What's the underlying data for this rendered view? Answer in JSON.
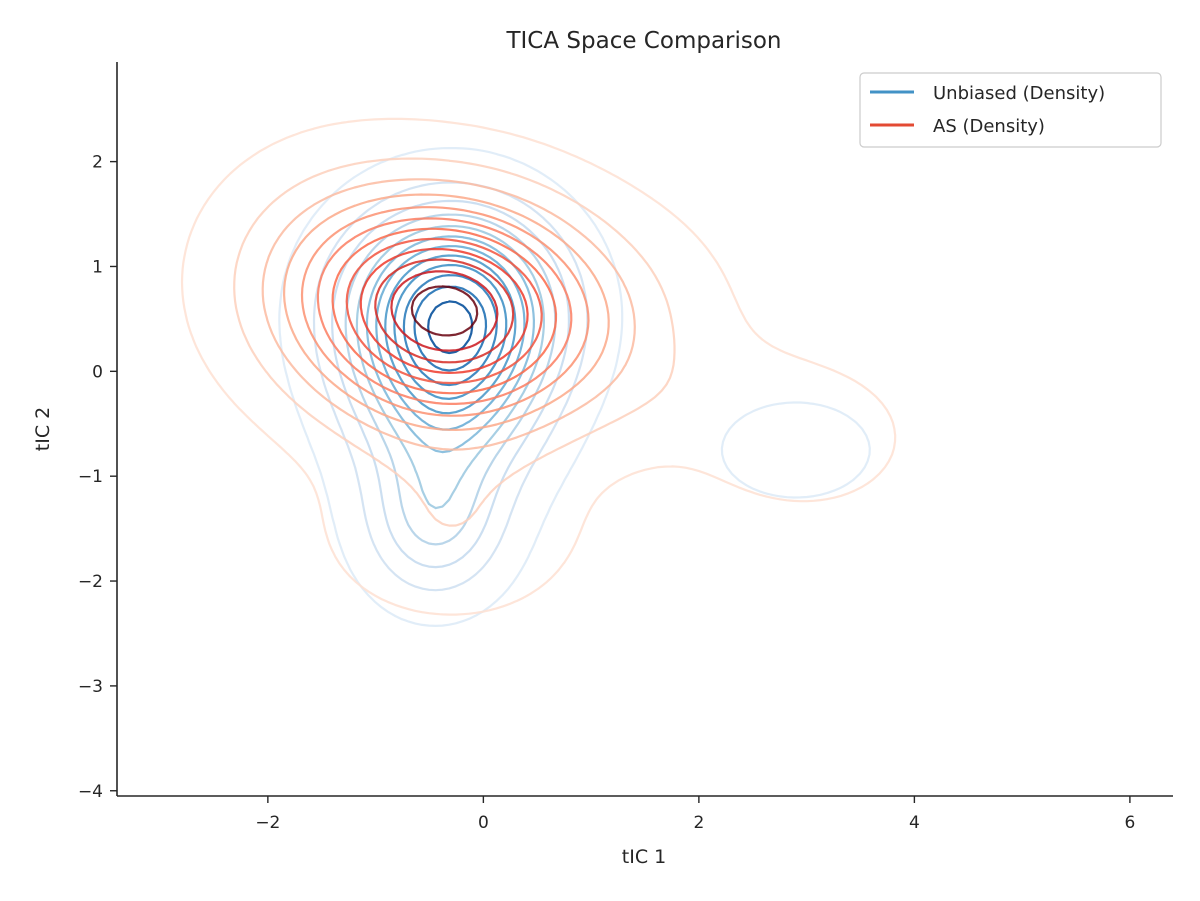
{
  "chart_data": {
    "type": "contour",
    "title": "TICA Space Comparison",
    "xlabel": "tIC 1",
    "ylabel": "tIC 2",
    "xlim": [
      -3.4,
      6.4
    ],
    "ylim": [
      -4.05,
      2.95
    ],
    "xticks": [
      -2,
      0,
      2,
      4,
      6
    ],
    "yticks": [
      -4,
      -3,
      -2,
      -1,
      0,
      1,
      2
    ],
    "grid": false,
    "legend_position": "top-right",
    "series": [
      {
        "name": "Unbiased (Density)",
        "legend_color": "#4292c6",
        "levels": 12,
        "colors": [
          "#deebf7",
          "#d0e1f2",
          "#c6dbef",
          "#b2d2e8",
          "#9ecae1",
          "#82badb",
          "#6baed6",
          "#4f9bcb",
          "#4292c6",
          "#2f7ebc",
          "#2171b5",
          "#08519c"
        ],
        "modes": [
          {
            "x": -0.3,
            "y": 0.55,
            "sx": 0.62,
            "sy": 0.62,
            "w": 1.0
          },
          {
            "x": -0.45,
            "y": -1.45,
            "sx": 0.42,
            "sy": 0.48,
            "w": 0.3
          },
          {
            "x": -0.35,
            "y": -0.4,
            "sx": 0.55,
            "sy": 0.6,
            "w": 0.35
          },
          {
            "x": 2.9,
            "y": -0.75,
            "sx": 0.5,
            "sy": 0.33,
            "w": 0.1
          }
        ]
      },
      {
        "name": "AS (Density)",
        "legend_color": "#e34a33",
        "levels": 12,
        "colors": [
          "#fee0d2",
          "#fdd0bc",
          "#fcbba1",
          "#fca98a",
          "#fc9272",
          "#fb7e61",
          "#fb6a4a",
          "#f2543e",
          "#ef3b2c",
          "#d62b24",
          "#cb181d",
          "#67000d"
        ],
        "modes": [
          {
            "x": -0.3,
            "y": 0.55,
            "sx": 0.78,
            "sy": 0.68,
            "w": 1.0
          },
          {
            "x": -1.3,
            "y": 0.9,
            "sx": 0.75,
            "sy": 0.7,
            "w": 0.25
          },
          {
            "x": -0.3,
            "y": -1.5,
            "sx": 0.75,
            "sy": 0.55,
            "w": 0.12
          },
          {
            "x": 1.0,
            "y": 0.4,
            "sx": 0.8,
            "sy": 0.7,
            "w": 0.15
          },
          {
            "x": 3.0,
            "y": -0.7,
            "sx": 0.55,
            "sy": 0.38,
            "w": 0.1
          },
          {
            "x": 2.4,
            "y": -0.3,
            "sx": 0.8,
            "sy": 0.4,
            "w": 0.05
          }
        ]
      }
    ]
  }
}
